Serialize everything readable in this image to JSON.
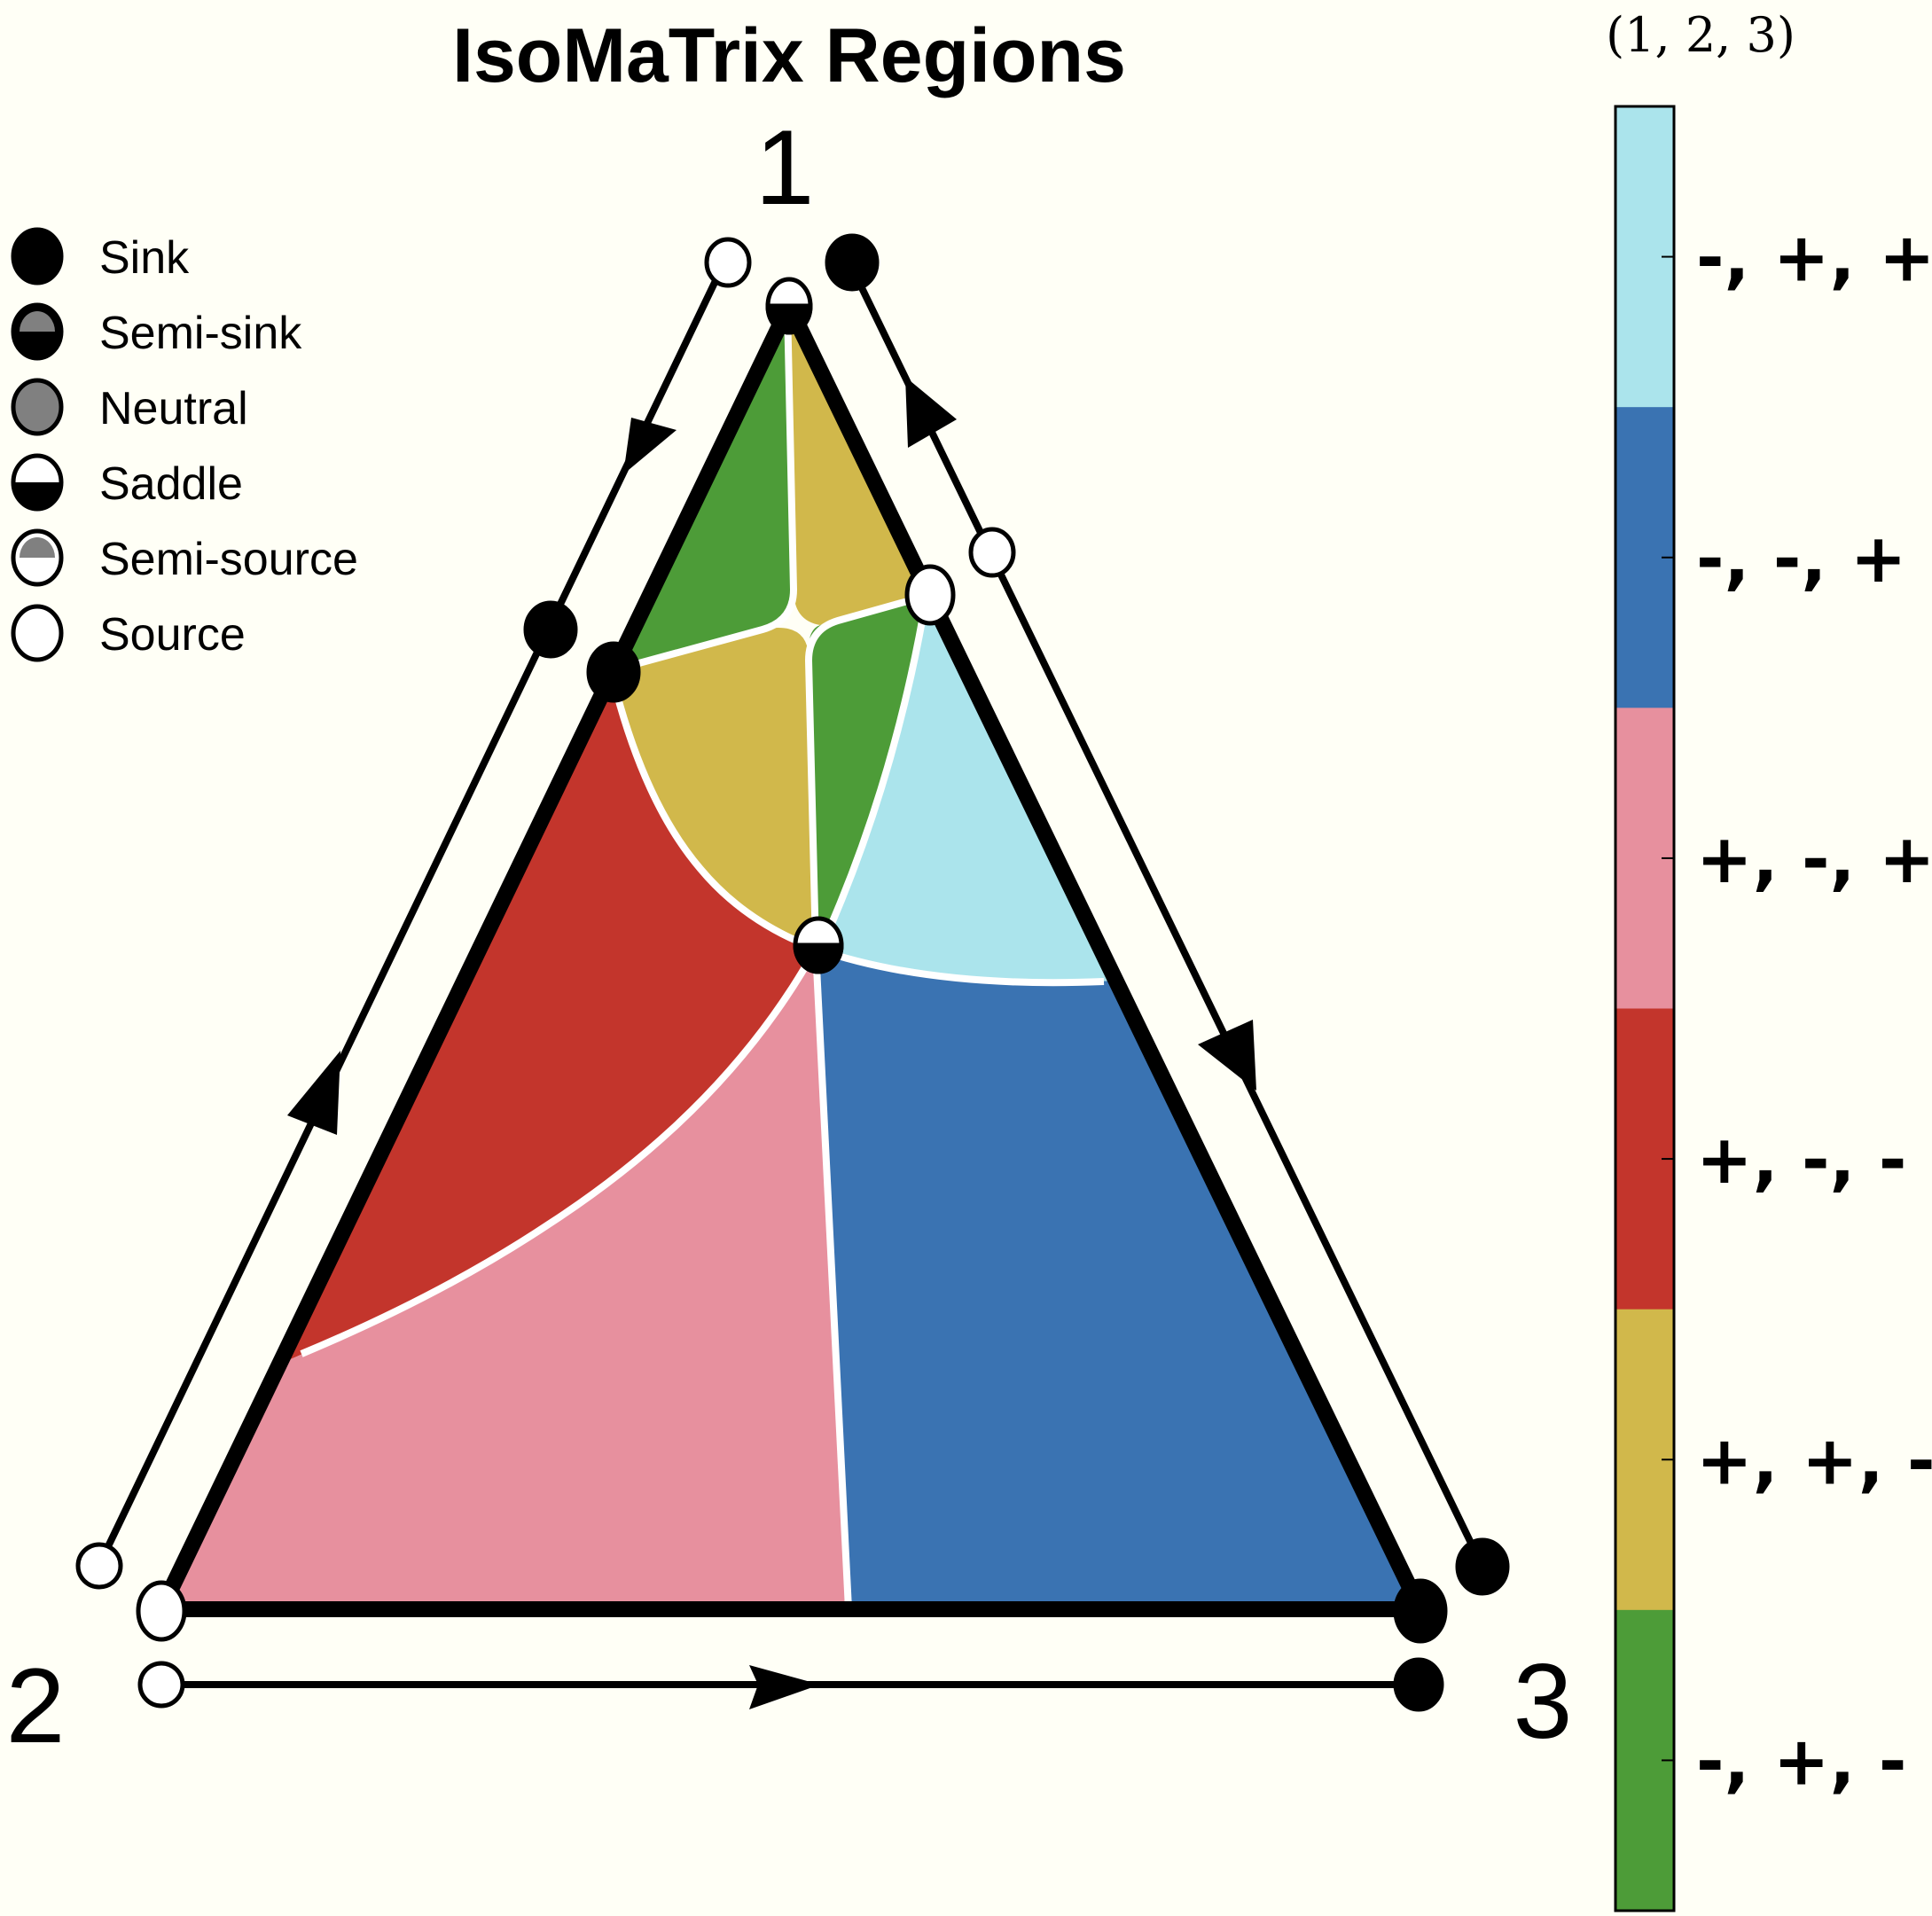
{
  "title": "IsoMaTrix Regions",
  "vertices": {
    "top": "1",
    "left": "2",
    "right": "3"
  },
  "legend": [
    {
      "id": "sink",
      "label": "Sink"
    },
    {
      "id": "semi-sink",
      "label": "Semi-sink"
    },
    {
      "id": "neutral",
      "label": "Neutral"
    },
    {
      "id": "saddle",
      "label": "Saddle"
    },
    {
      "id": "semi-source",
      "label": "Semi-source"
    },
    {
      "id": "source",
      "label": "Source"
    }
  ],
  "colorbar": {
    "title": "(1, 2, 3)",
    "entries": [
      {
        "label": "-, +, +",
        "color": "#abe4ec"
      },
      {
        "label": "-, -, +",
        "color": "#3a73b2"
      },
      {
        "label": "+, -, +",
        "color": "#e7909e"
      },
      {
        "label": "+, -, -",
        "color": "#c3352c"
      },
      {
        "label": "+, +, -",
        "color": "#d1b84b"
      },
      {
        "label": "-, +, -",
        "color": "#4d9c38"
      }
    ]
  },
  "region_colors": {
    "green": "#4d9c38",
    "yellow": "#d1b84b",
    "red": "#c3352c",
    "pink": "#e7909e",
    "lightblue": "#abe4ec",
    "blue": "#3a73b2"
  },
  "marker_colors": {
    "filled": "#000000",
    "neutral": "#808080",
    "open": "#ffffff"
  }
}
